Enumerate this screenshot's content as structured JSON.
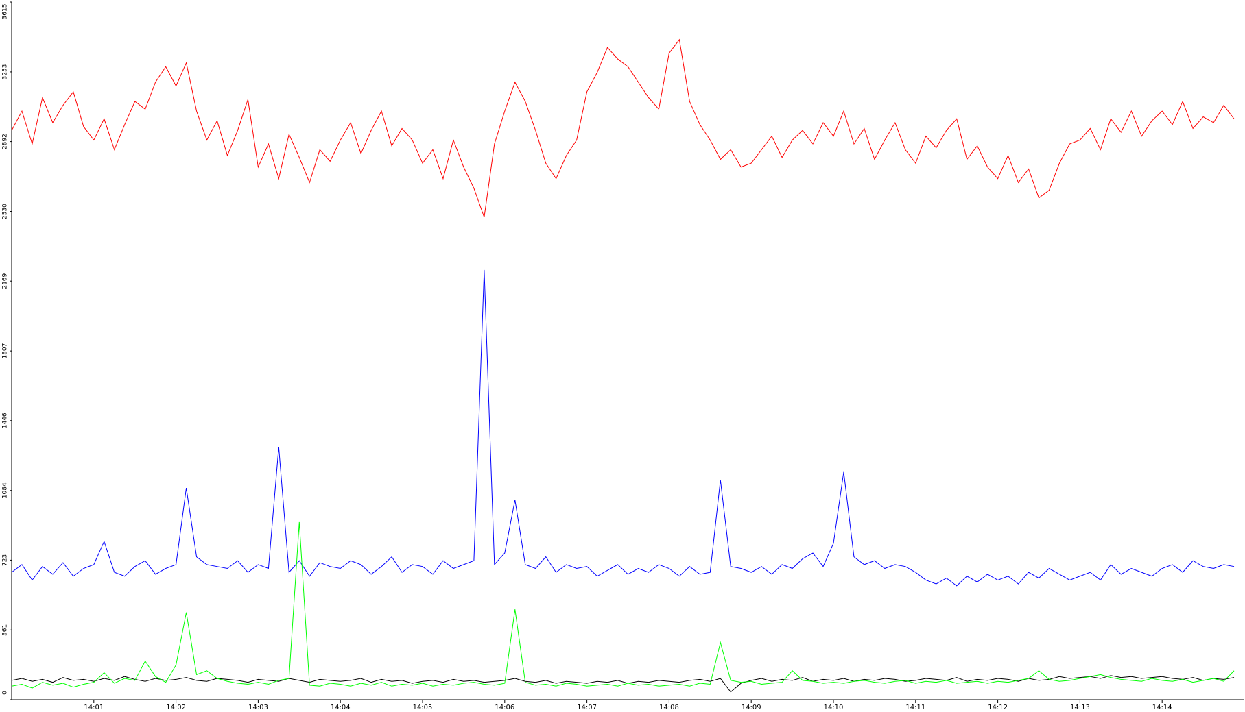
{
  "chart_data": {
    "type": "line",
    "x": [
      840,
      840.125,
      840.25,
      840.375,
      840.5,
      840.625,
      840.75,
      840.875,
      841,
      841.125,
      841.25,
      841.375,
      841.5,
      841.625,
      841.75,
      841.875,
      842,
      842.125,
      842.25,
      842.375,
      842.5,
      842.625,
      842.75,
      842.875,
      843,
      843.125,
      843.25,
      843.375,
      843.5,
      843.625,
      843.75,
      843.875,
      844,
      844.125,
      844.25,
      844.375,
      844.5,
      844.625,
      844.75,
      844.875,
      845,
      845.125,
      845.25,
      845.375,
      845.5,
      845.625,
      845.75,
      845.875,
      846,
      846.125,
      846.25,
      846.375,
      846.5,
      846.625,
      846.75,
      846.875,
      847,
      847.125,
      847.25,
      847.375,
      847.5,
      847.625,
      847.75,
      847.875,
      848,
      848.125,
      848.25,
      848.375,
      848.5,
      848.625,
      848.75,
      848.875,
      849,
      849.125,
      849.25,
      849.375,
      849.5,
      849.625,
      849.75,
      849.875,
      850,
      850.125,
      850.25,
      850.375,
      850.5,
      850.625,
      850.75,
      850.875,
      851,
      851.125,
      851.25,
      851.375,
      851.5,
      851.625,
      851.75,
      851.875,
      852,
      852.125,
      852.25,
      852.375,
      852.5,
      852.625,
      852.75,
      852.875,
      853,
      853.125,
      853.25,
      853.375,
      853.5,
      853.625,
      853.75,
      853.875,
      854,
      854.125,
      854.25,
      854.375,
      854.5,
      854.625,
      854.75,
      854.875
    ],
    "series": [
      {
        "color": "#ff0000",
        "values": [
          2950,
          3050,
          2880,
          3120,
          2990,
          3080,
          3150,
          2970,
          2900,
          3010,
          2850,
          2980,
          3100,
          3060,
          3200,
          3280,
          3180,
          3300,
          3050,
          2900,
          3000,
          2820,
          2950,
          3110,
          2760,
          2880,
          2700,
          2930,
          2810,
          2680,
          2850,
          2790,
          2900,
          2990,
          2830,
          2950,
          3050,
          2870,
          2960,
          2900,
          2780,
          2850,
          2700,
          2900,
          2760,
          2650,
          2500,
          2880,
          3050,
          3200,
          3100,
          2950,
          2780,
          2700,
          2820,
          2900,
          3150,
          3250,
          3380,
          3320,
          3280,
          3200,
          3120,
          3060,
          3350,
          3420,
          3100,
          2980,
          2900,
          2800,
          2850,
          2760,
          2780,
          2850,
          2920,
          2810,
          2900,
          2950,
          2880,
          2990,
          2920,
          3050,
          2880,
          2960,
          2800,
          2900,
          2990,
          2850,
          2780,
          2920,
          2860,
          2950,
          3010,
          2800,
          2870,
          2760,
          2700,
          2820,
          2680,
          2750,
          2600,
          2640,
          2780,
          2880,
          2900,
          2960,
          2850,
          3010,
          2940,
          3050,
          2920,
          3000,
          3050,
          2980,
          3100,
          2960,
          3020,
          2990,
          3080,
          3010
        ]
      },
      {
        "color": "#0000ff",
        "values": [
          660,
          700,
          620,
          690,
          650,
          710,
          640,
          680,
          700,
          820,
          660,
          640,
          690,
          720,
          650,
          680,
          700,
          1097,
          740,
          700,
          690,
          680,
          720,
          660,
          700,
          680,
          1310,
          660,
          720,
          640,
          710,
          690,
          680,
          720,
          700,
          650,
          690,
          740,
          660,
          700,
          690,
          650,
          720,
          680,
          700,
          720,
          2227,
          700,
          760,
          1035,
          700,
          680,
          740,
          660,
          700,
          680,
          690,
          640,
          670,
          700,
          650,
          680,
          660,
          700,
          680,
          640,
          690,
          650,
          660,
          1138,
          690,
          680,
          660,
          690,
          650,
          700,
          680,
          730,
          760,
          690,
          810,
          1180,
          740,
          700,
          720,
          680,
          700,
          690,
          660,
          620,
          600,
          630,
          590,
          640,
          610,
          650,
          620,
          640,
          600,
          660,
          630,
          680,
          650,
          620,
          640,
          660,
          620,
          700,
          650,
          680,
          660,
          640,
          680,
          700,
          660,
          720,
          690,
          680,
          700,
          690
        ]
      },
      {
        "color": "#000000",
        "values": [
          100,
          110,
          95,
          105,
          90,
          115,
          100,
          105,
          95,
          110,
          100,
          120,
          105,
          95,
          110,
          100,
          105,
          115,
          100,
          95,
          110,
          105,
          100,
          90,
          105,
          100,
          95,
          110,
          100,
          90,
          105,
          100,
          95,
          100,
          110,
          90,
          105,
          95,
          100,
          85,
          95,
          100,
          90,
          105,
          95,
          100,
          90,
          95,
          100,
          110,
          95,
          90,
          100,
          85,
          95,
          90,
          85,
          95,
          90,
          100,
          85,
          95,
          90,
          100,
          95,
          90,
          100,
          105,
          95,
          110,
          40,
          85,
          100,
          110,
          95,
          105,
          100,
          115,
          95,
          105,
          100,
          110,
          95,
          105,
          100,
          110,
          105,
          95,
          100,
          110,
          105,
          100,
          115,
          95,
          105,
          100,
          110,
          105,
          95,
          110,
          100,
          105,
          120,
          110,
          115,
          120,
          110,
          125,
          115,
          120,
          110,
          115,
          120,
          110,
          105,
          115,
          100,
          110,
          105,
          115
        ]
      },
      {
        "color": "#00ff00",
        "values": [
          70,
          80,
          60,
          90,
          75,
          85,
          65,
          80,
          90,
          140,
          85,
          110,
          100,
          200,
          120,
          90,
          180,
          452,
          130,
          150,
          110,
          95,
          85,
          80,
          90,
          80,
          100,
          110,
          920,
          75,
          70,
          85,
          80,
          70,
          85,
          75,
          90,
          70,
          80,
          75,
          85,
          70,
          80,
          75,
          85,
          90,
          80,
          75,
          85,
          468,
          90,
          75,
          80,
          70,
          85,
          80,
          70,
          75,
          80,
          70,
          85,
          75,
          80,
          70,
          75,
          80,
          70,
          85,
          80,
          296,
          100,
          90,
          95,
          80,
          85,
          90,
          150,
          100,
          95,
          85,
          90,
          85,
          95,
          100,
          90,
          85,
          95,
          100,
          85,
          95,
          90,
          100,
          85,
          90,
          95,
          85,
          95,
          90,
          100,
          110,
          150,
          105,
          95,
          100,
          110,
          120,
          130,
          115,
          105,
          100,
          95,
          110,
          100,
          95,
          105,
          90,
          100,
          110,
          95,
          150
        ]
      }
    ],
    "xlim": [
      840,
      855
    ],
    "xticks": [
      {
        "value": 841,
        "label": "14:01"
      },
      {
        "value": 842,
        "label": "14:02"
      },
      {
        "value": 843,
        "label": "14:03"
      },
      {
        "value": 844,
        "label": "14:04"
      },
      {
        "value": 845,
        "label": "14:05"
      },
      {
        "value": 846,
        "label": "14:06"
      },
      {
        "value": 847,
        "label": "14:07"
      },
      {
        "value": 848,
        "label": "14:08"
      },
      {
        "value": 849,
        "label": "14:09"
      },
      {
        "value": 850,
        "label": "14:10"
      },
      {
        "value": 851,
        "label": "14:11"
      },
      {
        "value": 852,
        "label": "14:12"
      },
      {
        "value": 853,
        "label": "14:13"
      },
      {
        "value": 854,
        "label": "14:14"
      }
    ],
    "ylim": [
      0,
      3615
    ],
    "yticks": [
      0,
      361,
      723,
      1084,
      1446,
      1807,
      2169,
      2530,
      2892,
      3253,
      3615
    ]
  }
}
